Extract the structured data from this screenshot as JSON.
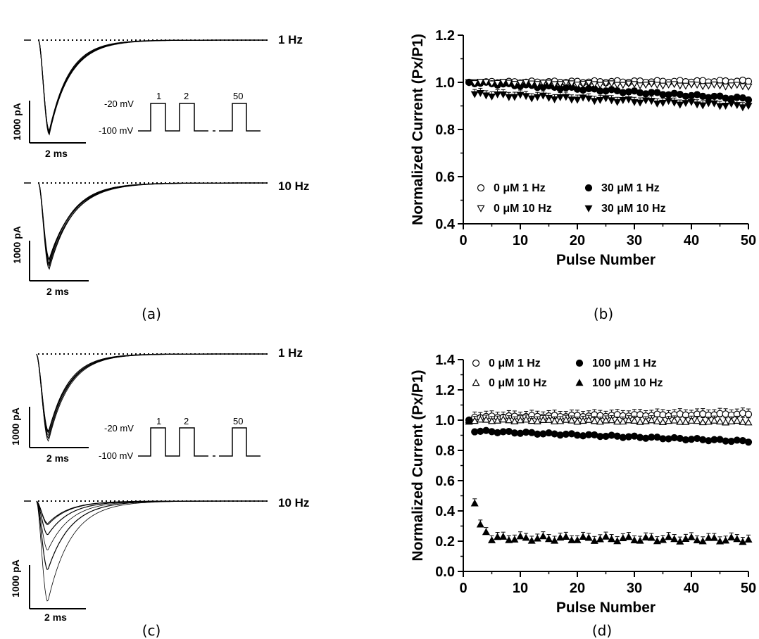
{
  "panel_labels": [
    "(a)",
    "(b)",
    "(c)",
    "(d)"
  ],
  "traces": {
    "a_top": {
      "freq_label": "1 Hz",
      "scale_y": "1000 pA",
      "scale_x": "2 ms"
    },
    "a_bottom": {
      "freq_label": "10 Hz",
      "scale_y": "1000 pA",
      "scale_x": "2 ms"
    },
    "c_top": {
      "freq_label": "1 Hz",
      "scale_y": "1000 pA",
      "scale_x": "2 ms"
    },
    "c_bottom": {
      "freq_label": "10 Hz",
      "scale_y": "1000 pA",
      "scale_x": "2 ms"
    }
  },
  "protocol": {
    "v_high": "-20 mV",
    "v_low": "-100 mV",
    "pulse_labels": [
      "1",
      "2",
      "50"
    ]
  },
  "chart_data": [
    {
      "type": "scatter",
      "panel": "(b)",
      "xlabel": "Pulse Number",
      "ylabel": "Normalized Current (Px/P1)",
      "xlim": [
        0,
        50
      ],
      "ylim": [
        0.4,
        1.2
      ],
      "xticks": [
        0,
        10,
        20,
        30,
        40,
        50
      ],
      "yticks": [
        0.4,
        0.6,
        0.8,
        1.0,
        1.2
      ],
      "xtick_labels": [
        "0",
        "10",
        "20",
        "30",
        "40",
        "50"
      ],
      "ytick_labels": [
        "0.4",
        "0.6",
        "0.8",
        "1.0",
        "1.2"
      ],
      "legend": [
        "0 μM 1 Hz",
        "30 μM 1 Hz",
        "0 μM 10 Hz",
        "30 μM 10 Hz"
      ],
      "legend_placement": "bottom-left",
      "grid": false,
      "series": [
        {
          "name": "0 μM 1 Hz",
          "marker": "circle-open",
          "start": 1.0,
          "end": 1.005,
          "wobble": 0.004,
          "err": 0.01
        },
        {
          "name": "30 μM 1 Hz",
          "marker": "circle-filled",
          "start": 1.0,
          "end": 0.93,
          "wobble": 0.005,
          "err": 0.012
        },
        {
          "name": "0 μM 10 Hz",
          "marker": "triangle-down-open",
          "start": 1.0,
          "end": 0.985,
          "wobble": 0.004,
          "err": 0.01
        },
        {
          "name": "30 μM 10 Hz",
          "marker": "triangle-down-filled",
          "start": 0.95,
          "end": 0.9,
          "wobble": 0.007,
          "err": 0.02
        }
      ]
    },
    {
      "type": "scatter",
      "panel": "(d)",
      "xlabel": "Pulse Number",
      "ylabel": "Normalized Current (Px/P1)",
      "xlim": [
        0,
        50
      ],
      "ylim": [
        0.0,
        1.4
      ],
      "xticks": [
        0,
        10,
        20,
        30,
        40,
        50
      ],
      "yticks": [
        0.0,
        0.2,
        0.4,
        0.6,
        0.8,
        1.0,
        1.2,
        1.4
      ],
      "xtick_labels": [
        "0",
        "10",
        "20",
        "30",
        "40",
        "50"
      ],
      "ytick_labels": [
        "0.0",
        "0.2",
        "0.4",
        "0.6",
        "0.8",
        "1.0",
        "1.2",
        "1.4"
      ],
      "legend": [
        "0 μM 1 Hz",
        "100 μM 1 Hz",
        "0 μM 10 Hz",
        "100 μM 10 Hz"
      ],
      "legend_placement": "top",
      "grid": false,
      "series": [
        {
          "name": "0 μM 1 Hz",
          "marker": "circle-open",
          "start": 1.02,
          "end": 1.04,
          "wobble": 0.006,
          "err": 0.035
        },
        {
          "name": "100 μM 1 Hz",
          "marker": "circle-filled",
          "start": 0.93,
          "end": 0.86,
          "wobble": 0.006,
          "err": 0.012
        },
        {
          "name": "0 μM 10 Hz",
          "marker": "triangle-up-open",
          "start": 1.0,
          "end": 0.99,
          "wobble": 0.006,
          "err": 0.03
        },
        {
          "name": "100 μM 10 Hz",
          "marker": "triangle-up-filled",
          "start": 0.22,
          "end": 0.21,
          "wobble": 0.015,
          "err": 0.03,
          "first": [
            0.99,
            0.45,
            0.31,
            0.26
          ]
        }
      ]
    }
  ]
}
